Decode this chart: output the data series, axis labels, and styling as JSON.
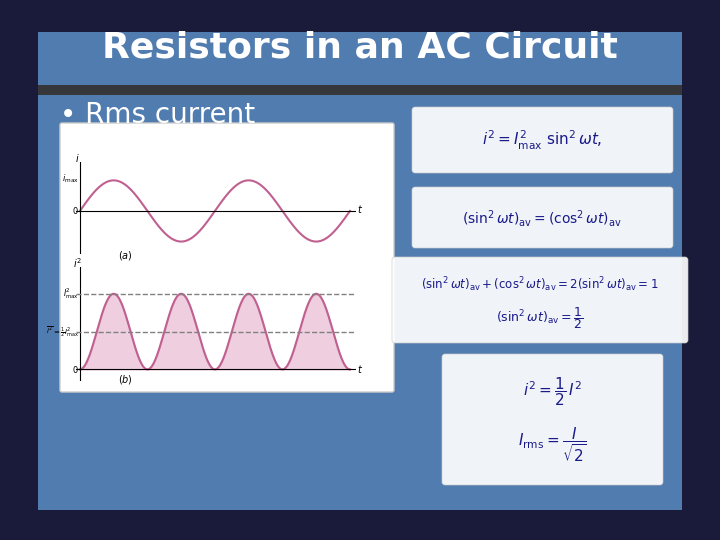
{
  "title": "Resistors in an AC Circuit",
  "bullet": "Rms current",
  "bg_outer": "#1a1a3a",
  "bg_slide": "#5b8ec4",
  "title_bg": "#4a7ab5",
  "title_color": "#ffffff",
  "bullet_color": "#ffffff",
  "graph_bg": "#ffffff",
  "eq1": "$i^2 = I^2_{\\mathrm{max}}\\ \\sin^2 \\omega t,$",
  "eq2": "$(\\sin^2 \\omega t)_{\\mathrm{av}} = (\\cos^2 \\omega t)_{\\mathrm{av}}$",
  "eq3": "$(\\sin^2 \\omega t)_{\\mathrm{av}} + (\\cos^2 \\omega t)_{\\mathrm{av}} = 2(\\sin^2 \\omega t)_{\\mathrm{av}} = 1$",
  "eq3b": "$(\\sin^2 \\omega t)_{\\mathrm{av}} = \\dfrac{1}{2}$",
  "eq4a": "$i^2 = \\dfrac{1}{2}\\, I^2$",
  "eq4b": "$I_{\\mathrm{rms}} = \\dfrac{I}{\\sqrt{2}}$",
  "sine_color": "#c06090",
  "sine_fill": "#e0a0c0",
  "dashed_color": "#808080"
}
